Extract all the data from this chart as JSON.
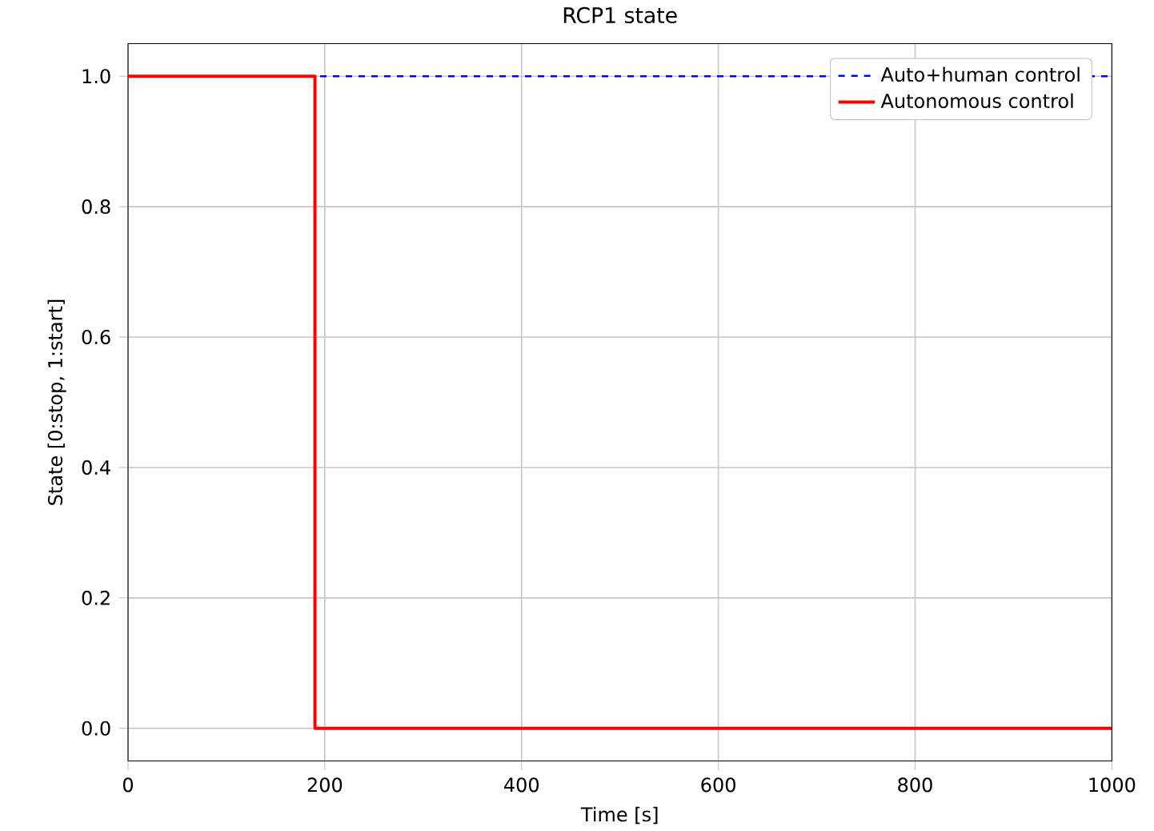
{
  "chart_data": {
    "type": "line",
    "title": "RCP1 state",
    "xlabel": "Time [s]",
    "ylabel": "State [0:stop, 1:start]",
    "xlim": [
      0,
      1000
    ],
    "xticks": [
      0,
      200,
      400,
      600,
      800,
      1000
    ],
    "ylim": [
      -0.05,
      1.05
    ],
    "yticks": [
      {
        "value": 0,
        "label": "0.0"
      },
      {
        "value": 0.2,
        "label": "0.2"
      },
      {
        "value": 0.4,
        "label": "0.4"
      },
      {
        "value": 0.6,
        "label": "0.6"
      },
      {
        "value": 0.8,
        "label": "0.8"
      },
      {
        "value": 1,
        "label": "1.0"
      }
    ],
    "grid": true,
    "legend": "top right",
    "series": [
      {
        "name": "Auto+human control",
        "color": "#0000ff",
        "type": "line",
        "line_style": "dashed",
        "x": [
          0,
          1000
        ],
        "values": [
          1,
          1
        ]
      },
      {
        "name": "Autonomous control",
        "color": "#ff0000",
        "type": "step",
        "line_style": "solid",
        "x": [
          0,
          190,
          1000
        ],
        "values": [
          1,
          0,
          0
        ]
      }
    ]
  }
}
